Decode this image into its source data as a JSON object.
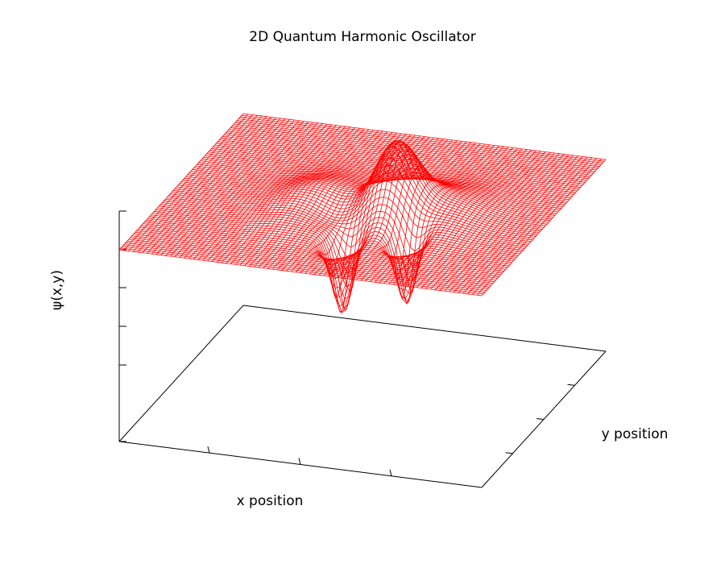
{
  "chart_data": {
    "type": "surface",
    "title": "2D Quantum Harmonic Oscillator",
    "xlabel": "x position",
    "ylabel": "y position",
    "zlabel": "ψ(x,y)",
    "grid": false,
    "legend": "none",
    "series": [
      {
        "color": "#ff0000"
      }
    ]
  }
}
